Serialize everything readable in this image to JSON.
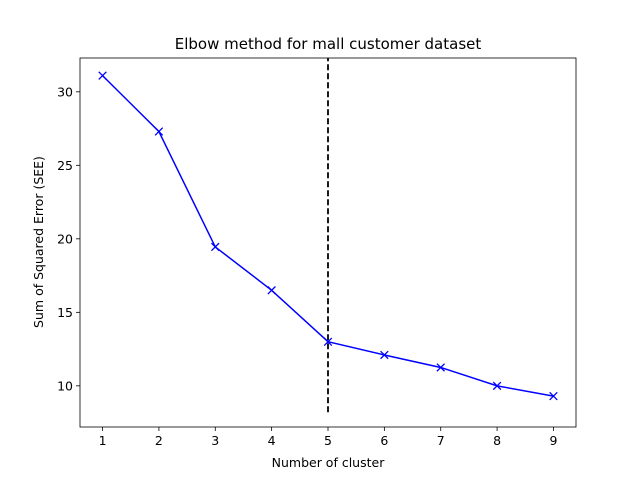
{
  "chart_data": {
    "type": "line",
    "title": "Elbow method for mall customer dataset",
    "xlabel": "Number of cluster",
    "ylabel": "Sum of Squared Error (SEE)",
    "x": [
      1,
      2,
      3,
      4,
      5,
      6,
      7,
      8,
      9
    ],
    "series": [
      {
        "values": [
          31.1,
          27.3,
          19.45,
          16.5,
          13.0,
          12.1,
          11.25,
          10.0,
          9.3
        ],
        "color": "#0000ff",
        "marker": "x"
      }
    ],
    "xticks": [
      "1",
      "2",
      "3",
      "4",
      "5",
      "6",
      "7",
      "8",
      "9"
    ],
    "yticks": [
      "10",
      "15",
      "20",
      "25",
      "30"
    ],
    "xlim": [
      0.6,
      9.4
    ],
    "ylim": [
      7.2,
      32.3
    ],
    "vline": {
      "x": 5,
      "ymin": 8.2,
      "ymax": 32.3,
      "style": "dashed",
      "color": "#000000"
    },
    "grid": false,
    "legend": "none"
  }
}
